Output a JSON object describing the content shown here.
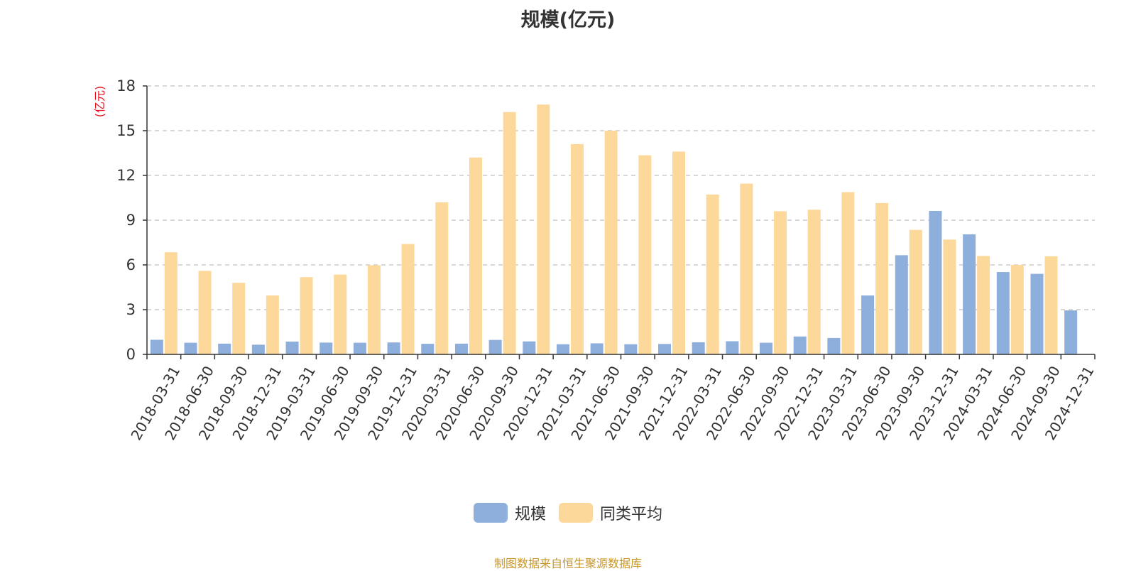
{
  "chart_data": {
    "type": "bar",
    "title": "规模(亿元)",
    "ylabel": "(亿元)",
    "ylim": [
      0,
      18
    ],
    "yticks": [
      0,
      3,
      6,
      9,
      12,
      15,
      18
    ],
    "grid": "horizontal dashed",
    "legend_position": "bottom-center",
    "categories": [
      "2018-03-31",
      "2018-06-30",
      "2018-09-30",
      "2018-12-31",
      "2019-03-31",
      "2019-06-30",
      "2019-09-30",
      "2019-12-31",
      "2020-03-31",
      "2020-06-30",
      "2020-09-30",
      "2020-12-31",
      "2021-03-31",
      "2021-06-30",
      "2021-09-30",
      "2021-12-31",
      "2022-03-31",
      "2022-06-30",
      "2022-09-30",
      "2022-12-31",
      "2023-03-31",
      "2023-06-30",
      "2023-09-30",
      "2023-12-31",
      "2024-03-31",
      "2024-06-30",
      "2024-09-30",
      "2024-12-31"
    ],
    "series": [
      {
        "name": "规模",
        "color": "#8eaedc",
        "values": [
          0.98,
          0.78,
          0.72,
          0.65,
          0.86,
          0.79,
          0.78,
          0.8,
          0.71,
          0.72,
          0.97,
          0.87,
          0.68,
          0.74,
          0.68,
          0.7,
          0.81,
          0.88,
          0.78,
          1.2,
          1.1,
          3.95,
          6.65,
          9.62,
          8.05,
          5.52,
          5.4,
          2.95
        ]
      },
      {
        "name": "同类平均",
        "color": "#fdd89b",
        "values": [
          6.85,
          5.6,
          4.8,
          3.95,
          5.18,
          5.35,
          5.98,
          7.4,
          10.2,
          13.2,
          16.25,
          16.75,
          14.1,
          15.0,
          13.35,
          13.6,
          10.72,
          11.45,
          9.6,
          9.7,
          10.88,
          10.15,
          8.35,
          7.7,
          6.6,
          6.0,
          6.58,
          null
        ]
      }
    ]
  },
  "footer": "制图数据来自恒生聚源数据库"
}
